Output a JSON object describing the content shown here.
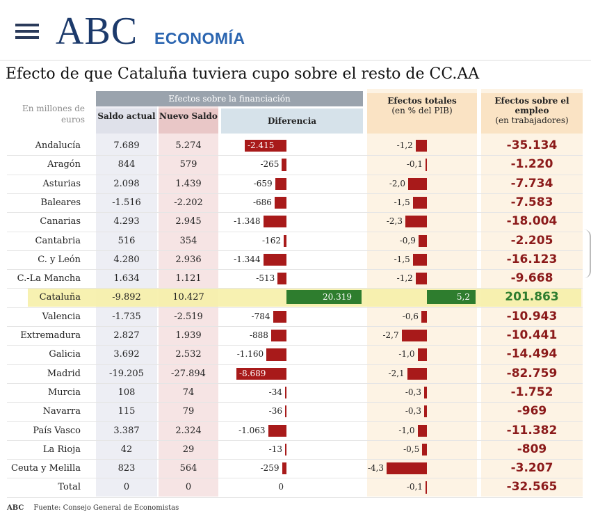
{
  "header": {
    "logo": "ABC",
    "section": "ECONOMÍA"
  },
  "title": "Efecto de que Cataluña tuviera cupo sobre el resto de CC.AA",
  "units_label": "En millones de euros",
  "group_header": "Efectos sobre la financiación",
  "columns": {
    "saldo_actual": "Saldo actual",
    "nuevo_saldo": "Nuevo Saldo",
    "diferencia": "Diferencia",
    "efectos_totales": "Efectos totales",
    "efectos_totales_sub": "(en % del PIB)",
    "efectos_empleo": "Efectos sobre el empleo",
    "efectos_empleo_sub": "(en trabajadores)"
  },
  "source": {
    "brand": "ABC",
    "text": "Fuente: Consejo General de Economistas"
  },
  "colors": {
    "negative": "#a81a1a",
    "positive": "#2e7d2e",
    "employment": "#8b1a1a",
    "highlight": "#f6f0a8"
  },
  "chart_data": {
    "type": "table",
    "rows": [
      {
        "region": "Andalucía",
        "saldo": "7.689",
        "nuevo": "5.274",
        "dif": "-2.415",
        "difv": -2415,
        "pib": "-1,2",
        "pibv": -1.2,
        "emp": "-35.134"
      },
      {
        "region": "Aragón",
        "saldo": "844",
        "nuevo": "579",
        "dif": "-265",
        "difv": -265,
        "pib": "-0,1",
        "pibv": -0.1,
        "emp": "-1.220"
      },
      {
        "region": "Asturias",
        "saldo": "2.098",
        "nuevo": "1.439",
        "dif": "-659",
        "difv": -659,
        "pib": "-2,0",
        "pibv": -2.0,
        "emp": "-7.734"
      },
      {
        "region": "Baleares",
        "saldo": "-1.516",
        "nuevo": "-2.202",
        "dif": "-686",
        "difv": -686,
        "pib": "-1,5",
        "pibv": -1.5,
        "emp": "-7.583"
      },
      {
        "region": "Canarias",
        "saldo": "4.293",
        "nuevo": "2.945",
        "dif": "-1.348",
        "difv": -1348,
        "pib": "-2,3",
        "pibv": -2.3,
        "emp": "-18.004"
      },
      {
        "region": "Cantabria",
        "saldo": "516",
        "nuevo": "354",
        "dif": "-162",
        "difv": -162,
        "pib": "-0,9",
        "pibv": -0.9,
        "emp": "-2.205"
      },
      {
        "region": "C. y León",
        "saldo": "4.280",
        "nuevo": "2.936",
        "dif": "-1.344",
        "difv": -1344,
        "pib": "-1,5",
        "pibv": -1.5,
        "emp": "-16.123"
      },
      {
        "region": "C.-La Mancha",
        "saldo": "1.634",
        "nuevo": "1.121",
        "dif": "-513",
        "difv": -513,
        "pib": "-1,2",
        "pibv": -1.2,
        "emp": "-9.668"
      },
      {
        "region": "Cataluña",
        "saldo": "-9.892",
        "nuevo": "10.427",
        "dif": "20.319",
        "difv": 20319,
        "pib": "5,2",
        "pibv": 5.2,
        "emp": "201.863",
        "highlight": true
      },
      {
        "region": "Valencia",
        "saldo": "-1.735",
        "nuevo": "-2.519",
        "dif": "-784",
        "difv": -784,
        "pib": "-0,6",
        "pibv": -0.6,
        "emp": "-10.943"
      },
      {
        "region": "Extremadura",
        "saldo": "2.827",
        "nuevo": "1.939",
        "dif": "-888",
        "difv": -888,
        "pib": "-2,7",
        "pibv": -2.7,
        "emp": "-10.441"
      },
      {
        "region": "Galicia",
        "saldo": "3.692",
        "nuevo": "2.532",
        "dif": "-1.160",
        "difv": -1160,
        "pib": "-1,0",
        "pibv": -1.0,
        "emp": "-14.494"
      },
      {
        "region": "Madrid",
        "saldo": "-19.205",
        "nuevo": "-27.894",
        "dif": "-8.689",
        "difv": -8689,
        "pib": "-2,1",
        "pibv": -2.1,
        "emp": "-82.759"
      },
      {
        "region": "Murcia",
        "saldo": "108",
        "nuevo": "74",
        "dif": "-34",
        "difv": -34,
        "pib": "-0,3",
        "pibv": -0.3,
        "emp": "-1.752"
      },
      {
        "region": "Navarra",
        "saldo": "115",
        "nuevo": "79",
        "dif": "-36",
        "difv": -36,
        "pib": "-0,3",
        "pibv": -0.3,
        "emp": "-969"
      },
      {
        "region": "País Vasco",
        "saldo": "3.387",
        "nuevo": "2.324",
        "dif": "-1.063",
        "difv": -1063,
        "pib": "-1,0",
        "pibv": -1.0,
        "emp": "-11.382"
      },
      {
        "region": "La Rioja",
        "saldo": "42",
        "nuevo": "29",
        "dif": "-13",
        "difv": -13,
        "pib": "-0,5",
        "pibv": -0.5,
        "emp": "-809"
      },
      {
        "region": "Ceuta y Melilla",
        "saldo": "823",
        "nuevo": "564",
        "dif": "-259",
        "difv": -259,
        "pib": "-4,3",
        "pibv": -4.3,
        "emp": "-3.207"
      },
      {
        "region": "Total",
        "saldo": "0",
        "nuevo": "0",
        "dif": "0",
        "difv": 0,
        "pib": "-0,1",
        "pibv": -0.1,
        "emp": "-32.565"
      }
    ]
  }
}
